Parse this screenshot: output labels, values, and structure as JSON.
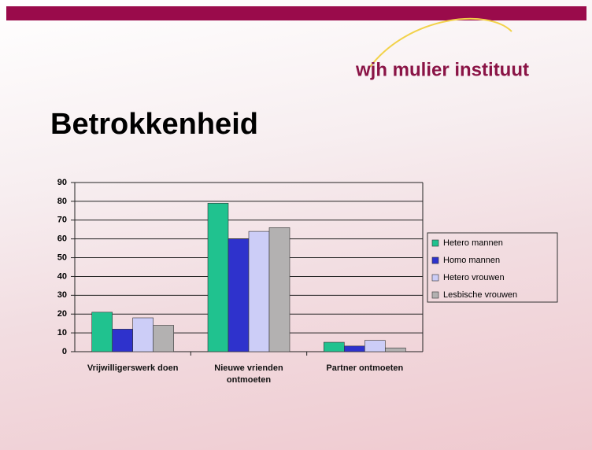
{
  "logo": "wjh mulier instituut",
  "chart_data": {
    "type": "bar",
    "title": "Betrokkenheid",
    "categories": [
      "Vrijwilligerswerk doen",
      "Nieuwe vrienden ontmoeten",
      "Partner ontmoeten"
    ],
    "series": [
      {
        "name": "Hetero mannen",
        "color": "#20c28f",
        "values": [
          21,
          79,
          5
        ]
      },
      {
        "name": "Homo mannen",
        "color": "#2e32cc",
        "values": [
          12,
          60,
          3
        ]
      },
      {
        "name": "Hetero vrouwen",
        "color": "#cccdf7",
        "values": [
          18,
          64,
          6
        ]
      },
      {
        "name": "Lesbische vrouwen",
        "color": "#b3b1b1",
        "values": [
          14,
          66,
          2
        ]
      }
    ],
    "ylim": [
      0,
      90
    ],
    "yticks": [
      0,
      10,
      20,
      30,
      40,
      50,
      60,
      70,
      80,
      90
    ],
    "grid": true,
    "legend": "right"
  }
}
